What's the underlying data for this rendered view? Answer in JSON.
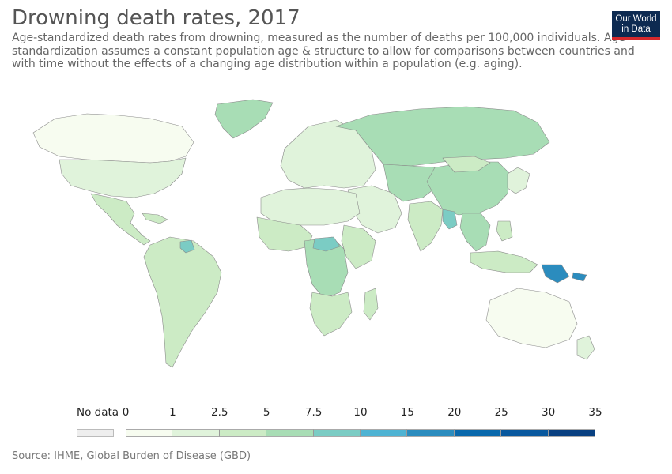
{
  "header": {
    "title": "Drowning death rates, 2017",
    "subtitle": "Age-standardized death rates from drowning, measured as the number of deaths per 100,000 individuals. Age-standardization assumes a constant population age & structure to allow for comparisons between countries and with time without the effects of a changing age distribution within a population (e.g. aging).",
    "logo_line1": "Our World",
    "logo_line2": "in Data"
  },
  "legend": {
    "no_data_label": "No data",
    "no_data_color": "#eeeeee",
    "ticks": [
      "0",
      "1",
      "2.5",
      "5",
      "7.5",
      "10",
      "15",
      "20",
      "25",
      "30",
      "35"
    ],
    "bin_colors": [
      "#f7fcf0",
      "#e0f3db",
      "#ccebc5",
      "#a8ddb5",
      "#7bccc4",
      "#4eb3d3",
      "#2b8cbe",
      "#0868ac",
      "#08589e",
      "#084081"
    ]
  },
  "footer": {
    "source": "Source: IHME, Global Burden of Disease (GBD)"
  },
  "map": {
    "regions": [
      {
        "name": "North America",
        "bin": 0
      },
      {
        "name": "Greenland",
        "bin": 3
      },
      {
        "name": "United States",
        "bin": 1
      },
      {
        "name": "Mexico & Central America",
        "bin": 2
      },
      {
        "name": "Caribbean",
        "bin": 2
      },
      {
        "name": "South America",
        "bin": 2
      },
      {
        "name": "Guyana",
        "bin": 4
      },
      {
        "name": "Europe",
        "bin": 1
      },
      {
        "name": "Russia",
        "bin": 3
      },
      {
        "name": "Middle East",
        "bin": 1
      },
      {
        "name": "Central Asia",
        "bin": 3
      },
      {
        "name": "China",
        "bin": 3
      },
      {
        "name": "Mongolia",
        "bin": 2
      },
      {
        "name": "Japan & Korea",
        "bin": 1
      },
      {
        "name": "India",
        "bin": 2
      },
      {
        "name": "Southeast Asia",
        "bin": 3
      },
      {
        "name": "Myanmar",
        "bin": 4
      },
      {
        "name": "Indonesia & Philippines",
        "bin": 2
      },
      {
        "name": "Papua New Guinea",
        "bin": 6
      },
      {
        "name": "Solomon Islands",
        "bin": 6
      },
      {
        "name": "North Africa",
        "bin": 1
      },
      {
        "name": "West Africa",
        "bin": 2
      },
      {
        "name": "Central Africa",
        "bin": 3
      },
      {
        "name": "Central African Republic",
        "bin": 4
      },
      {
        "name": "East Africa",
        "bin": 2
      },
      {
        "name": "Southern Africa",
        "bin": 2
      },
      {
        "name": "Madagascar",
        "bin": 2
      },
      {
        "name": "Australia",
        "bin": 0
      },
      {
        "name": "New Zealand",
        "bin": 1
      }
    ]
  }
}
